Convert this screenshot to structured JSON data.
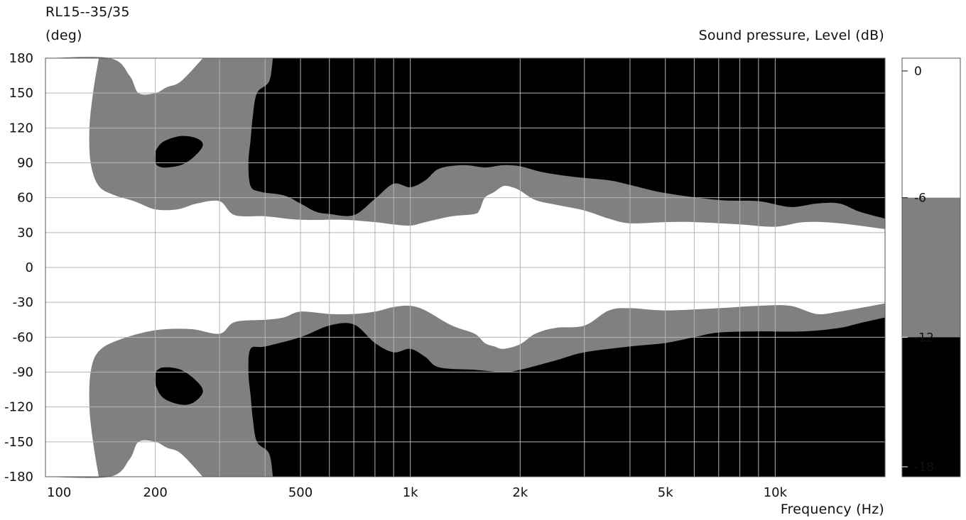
{
  "chart_data": {
    "type": "heatmap",
    "title": "RL15--35/35",
    "ylabel": "(deg)",
    "xlabel": "Frequency  (Hz)",
    "colorbar_label": "Sound pressure, Level  (dB)",
    "x_scale": "log",
    "xlim": [
      100,
      20000
    ],
    "ylim": [
      -180,
      180
    ],
    "grid": true,
    "x_ticks": [
      {
        "value": 100,
        "label": "100"
      },
      {
        "value": 200,
        "label": "200"
      },
      {
        "value": 500,
        "label": "500"
      },
      {
        "value": 1000,
        "label": "1k"
      },
      {
        "value": 2000,
        "label": "2k"
      },
      {
        "value": 5000,
        "label": "5k"
      },
      {
        "value": 10000,
        "label": "10k"
      }
    ],
    "y_ticks": [
      {
        "value": 180,
        "label": "180"
      },
      {
        "value": 150,
        "label": "150"
      },
      {
        "value": 120,
        "label": "120"
      },
      {
        "value": 90,
        "label": "90"
      },
      {
        "value": 60,
        "label": "60"
      },
      {
        "value": 30,
        "label": "30"
      },
      {
        "value": 0,
        "label": "0"
      },
      {
        "value": -30,
        "label": "-30"
      },
      {
        "value": -60,
        "label": "-60"
      },
      {
        "value": -90,
        "label": "-90"
      },
      {
        "value": -120,
        "label": "-120"
      },
      {
        "value": -150,
        "label": "-150"
      },
      {
        "value": -180,
        "label": "-180"
      }
    ],
    "levels": [
      {
        "range_db": [
          -6,
          0
        ],
        "color": "#ffffff"
      },
      {
        "range_db": [
          -12,
          -6
        ],
        "color": "#808080"
      },
      {
        "range_db": [
          -18,
          -12
        ],
        "color": "#000000"
      }
    ],
    "colorbar_ticks": [
      {
        "value": 0,
        "label": "0"
      },
      {
        "value": -6,
        "label": "-6"
      },
      {
        "value": -12,
        "label": "-12"
      },
      {
        "value": -18,
        "label": "-18"
      }
    ],
    "contours": {
      "upper_grey_inner_edge": [
        [
          100,
          180
        ],
        [
          150,
          180
        ],
        [
          170,
          165
        ],
        [
          180,
          150
        ],
        [
          200,
          150
        ],
        [
          215,
          155
        ],
        [
          235,
          160
        ],
        [
          270,
          180
        ]
      ],
      "upper_grey_outer_edge": [
        [
          140,
          180
        ],
        [
          135,
          150
        ],
        [
          132,
          120
        ],
        [
          133,
          90
        ],
        [
          140,
          70
        ],
        [
          155,
          62
        ],
        [
          175,
          57
        ],
        [
          200,
          50
        ],
        [
          230,
          50
        ],
        [
          260,
          55
        ],
        [
          300,
          57
        ],
        [
          330,
          45
        ],
        [
          400,
          44
        ],
        [
          500,
          41
        ],
        [
          650,
          41
        ],
        [
          800,
          39
        ],
        [
          900,
          37
        ],
        [
          1000,
          36
        ],
        [
          1100,
          39
        ],
        [
          1300,
          44
        ],
        [
          1500,
          46
        ],
        [
          1550,
          50
        ],
        [
          1600,
          60
        ],
        [
          1700,
          65
        ],
        [
          1800,
          70
        ],
        [
          1900,
          69
        ],
        [
          2000,
          66
        ],
        [
          2200,
          58
        ],
        [
          2500,
          54
        ],
        [
          3000,
          49
        ],
        [
          3500,
          42
        ],
        [
          4000,
          38
        ],
        [
          5000,
          39
        ],
        [
          6000,
          39
        ],
        [
          8000,
          37
        ],
        [
          10000,
          35
        ],
        [
          12000,
          39
        ],
        [
          15000,
          38
        ],
        [
          20000,
          33
        ]
      ],
      "upper_black_edge": [
        [
          420,
          180
        ],
        [
          410,
          160
        ],
        [
          380,
          150
        ],
        [
          370,
          130
        ],
        [
          365,
          110
        ],
        [
          360,
          90
        ],
        [
          365,
          70
        ],
        [
          390,
          65
        ],
        [
          450,
          62
        ],
        [
          500,
          55
        ],
        [
          550,
          48
        ],
        [
          600,
          46
        ],
        [
          700,
          45
        ],
        [
          800,
          59
        ],
        [
          900,
          72
        ],
        [
          1000,
          69
        ],
        [
          1100,
          75
        ],
        [
          1200,
          85
        ],
        [
          1400,
          88
        ],
        [
          1600,
          86
        ],
        [
          1800,
          88
        ],
        [
          2000,
          87
        ],
        [
          2300,
          82
        ],
        [
          2800,
          78
        ],
        [
          3500,
          75
        ],
        [
          4000,
          71
        ],
        [
          5000,
          64
        ],
        [
          7000,
          58
        ],
        [
          9000,
          57
        ],
        [
          11000,
          52
        ],
        [
          13000,
          55
        ],
        [
          15000,
          55
        ],
        [
          17000,
          48
        ],
        [
          20000,
          42
        ]
      ],
      "lower_grey_outer_edge": [
        [
          140,
          -180
        ],
        [
          135,
          -150
        ],
        [
          132,
          -120
        ],
        [
          133,
          -90
        ],
        [
          140,
          -72
        ],
        [
          160,
          -62
        ],
        [
          200,
          -54
        ],
        [
          250,
          -53
        ],
        [
          300,
          -57
        ],
        [
          330,
          -47
        ],
        [
          400,
          -45
        ],
        [
          450,
          -43
        ],
        [
          500,
          -38
        ],
        [
          600,
          -40
        ],
        [
          700,
          -40
        ],
        [
          800,
          -38
        ],
        [
          900,
          -34
        ],
        [
          1000,
          -33
        ],
        [
          1100,
          -37
        ],
        [
          1300,
          -50
        ],
        [
          1500,
          -57
        ],
        [
          1600,
          -65
        ],
        [
          1700,
          -68
        ],
        [
          1800,
          -70
        ],
        [
          2000,
          -66
        ],
        [
          2200,
          -57
        ],
        [
          2500,
          -52
        ],
        [
          3000,
          -50
        ],
        [
          3500,
          -37
        ],
        [
          4000,
          -35
        ],
        [
          5000,
          -37
        ],
        [
          7000,
          -35
        ],
        [
          9000,
          -33
        ],
        [
          11000,
          -33
        ],
        [
          13000,
          -40
        ],
        [
          15000,
          -38
        ],
        [
          20000,
          -31
        ]
      ],
      "lower_black_edge": [
        [
          420,
          -180
        ],
        [
          410,
          -160
        ],
        [
          380,
          -150
        ],
        [
          370,
          -130
        ],
        [
          365,
          -110
        ],
        [
          360,
          -90
        ],
        [
          365,
          -70
        ],
        [
          400,
          -68
        ],
        [
          500,
          -60
        ],
        [
          600,
          -50
        ],
        [
          700,
          -49
        ],
        [
          800,
          -65
        ],
        [
          900,
          -73
        ],
        [
          1000,
          -70
        ],
        [
          1100,
          -77
        ],
        [
          1200,
          -86
        ],
        [
          1500,
          -88
        ],
        [
          1800,
          -90
        ],
        [
          2000,
          -88
        ],
        [
          2500,
          -80
        ],
        [
          3000,
          -73
        ],
        [
          4000,
          -68
        ],
        [
          5000,
          -65
        ],
        [
          6000,
          -60
        ],
        [
          7000,
          -56
        ],
        [
          9000,
          -55
        ],
        [
          12000,
          -55
        ],
        [
          15000,
          -52
        ],
        [
          17000,
          -48
        ],
        [
          20000,
          -43
        ]
      ],
      "black_islands": [
        [
          [
            200,
            100
          ],
          [
            210,
            108
          ],
          [
            235,
            113
          ],
          [
            260,
            111
          ],
          [
            270,
            105
          ],
          [
            255,
            95
          ],
          [
            235,
            88
          ],
          [
            210,
            86
          ],
          [
            200,
            90
          ]
        ],
        [
          [
            200,
            -90
          ],
          [
            210,
            -86
          ],
          [
            235,
            -88
          ],
          [
            260,
            -98
          ],
          [
            270,
            -107
          ],
          [
            255,
            -116
          ],
          [
            235,
            -118
          ],
          [
            210,
            -112
          ],
          [
            200,
            -100
          ]
        ]
      ]
    }
  }
}
